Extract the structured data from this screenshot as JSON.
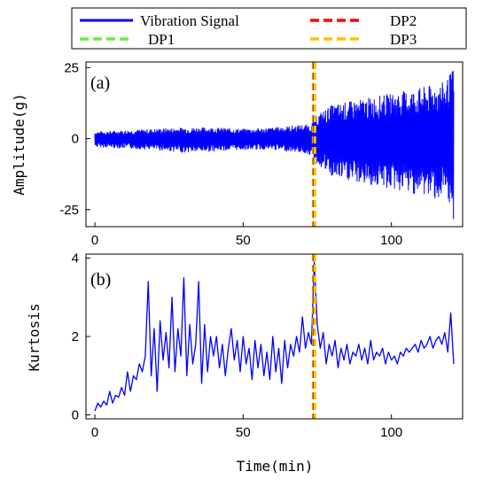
{
  "chart_data": [
    {
      "id": "a",
      "type": "line",
      "panel_label": "(a)",
      "xlabel": "",
      "ylabel": "Amplitude(g)",
      "xlim": [
        -3,
        124
      ],
      "ylim": [
        -31,
        27
      ],
      "x_ticks": [
        0,
        50,
        100
      ],
      "y_ticks": [
        -25,
        0,
        25
      ],
      "series": [
        {
          "name": "Vibration Signal",
          "color": "#0000ff",
          "envelope": {
            "x": [
              0,
              10,
              20,
              30,
              40,
              50,
              60,
              70,
              73,
              74,
              80,
              90,
              100,
              110,
              118,
              121
            ],
            "upper": [
              2.5,
              3,
              3.5,
              4,
              4,
              3.5,
              4,
              5,
              5,
              8,
              12,
              14,
              16,
              18,
              20,
              25
            ],
            "lower": [
              -3,
              -3.5,
              -4,
              -5,
              -4.5,
              -4,
              -4,
              -5,
              -6,
              -8,
              -14,
              -16,
              -18,
              -20,
              -22,
              -29
            ]
          }
        }
      ],
      "vlines": [
        {
          "name": "DP1",
          "x": 73.6,
          "color": "#66ee44",
          "dash": true
        },
        {
          "name": "DP2",
          "x": 73.9,
          "color": "#ff0000",
          "dash": true
        },
        {
          "name": "DP3",
          "x": 74.2,
          "color": "#ffc000",
          "dash": true
        }
      ]
    },
    {
      "id": "b",
      "type": "line",
      "panel_label": "(b)",
      "xlabel": "Time(min)",
      "ylabel": "Kurtosis",
      "xlim": [
        -3,
        124
      ],
      "ylim": [
        -0.1,
        4.1
      ],
      "x_ticks": [
        0,
        50,
        100
      ],
      "y_ticks": [
        0,
        2,
        4
      ],
      "series": [
        {
          "name": "Kurtosis",
          "color": "#0000ff",
          "x": [
            0,
            1,
            2,
            3,
            4,
            5,
            6,
            7,
            8,
            9,
            10,
            11,
            12,
            13,
            14,
            15,
            16,
            17,
            18,
            19,
            20,
            21,
            22,
            23,
            24,
            25,
            26,
            27,
            28,
            29,
            30,
            31,
            32,
            33,
            34,
            35,
            36,
            37,
            38,
            39,
            40,
            41,
            42,
            43,
            44,
            45,
            46,
            47,
            48,
            49,
            50,
            51,
            52,
            53,
            54,
            55,
            56,
            57,
            58,
            59,
            60,
            61,
            62,
            63,
            64,
            65,
            66,
            67,
            68,
            69,
            70,
            71,
            72,
            73,
            74,
            75,
            76,
            77,
            78,
            79,
            80,
            81,
            82,
            83,
            84,
            85,
            86,
            87,
            88,
            89,
            90,
            91,
            92,
            93,
            94,
            95,
            96,
            97,
            98,
            99,
            100,
            101,
            102,
            103,
            104,
            105,
            106,
            107,
            108,
            109,
            110,
            111,
            112,
            113,
            114,
            115,
            116,
            117,
            118,
            119,
            120,
            121
          ],
          "values": [
            0.1,
            0.3,
            0.2,
            0.35,
            0.25,
            0.6,
            0.3,
            0.5,
            0.45,
            0.7,
            0.5,
            1.1,
            0.6,
            1.0,
            0.9,
            1.3,
            1.1,
            1.5,
            3.4,
            1.0,
            2.2,
            0.6,
            2.4,
            1.4,
            2.1,
            1.2,
            3.0,
            1.1,
            2.2,
            1.5,
            3.5,
            1.0,
            2.3,
            1.3,
            1.8,
            3.4,
            0.8,
            2.3,
            1.1,
            2.0,
            1.5,
            2.0,
            1.2,
            1.8,
            1.0,
            1.7,
            2.2,
            1.4,
            1.9,
            1.1,
            2.0,
            1.3,
            1.7,
            0.9,
            1.9,
            1.2,
            1.8,
            1.0,
            1.6,
            0.9,
            2.0,
            1.1,
            1.7,
            0.8,
            1.9,
            1.2,
            1.8,
            1.5,
            2.0,
            1.6,
            2.5,
            1.7,
            2.1,
            1.8,
            3.9,
            2.3,
            1.7,
            2.1,
            1.3,
            1.8,
            1.5,
            1.9,
            1.2,
            1.7,
            1.4,
            1.8,
            1.3,
            1.6,
            1.5,
            1.8,
            1.4,
            1.7,
            1.3,
            1.9,
            1.4,
            1.6,
            1.5,
            1.7,
            1.3,
            1.6,
            1.4,
            1.5,
            1.3,
            1.6,
            1.5,
            1.7,
            1.6,
            1.7,
            1.8,
            1.6,
            1.9,
            1.7,
            1.8,
            2.0,
            1.7,
            1.9,
            2.0,
            1.8,
            2.1,
            1.6,
            2.6,
            1.3
          ]
        }
      ],
      "vlines": [
        {
          "name": "DP1",
          "x": 73.6,
          "color": "#66ee44",
          "dash": true
        },
        {
          "name": "DP2",
          "x": 73.9,
          "color": "#ff0000",
          "dash": true
        },
        {
          "name": "DP3",
          "x": 74.2,
          "color": "#ffc000",
          "dash": true
        }
      ]
    }
  ],
  "legend": {
    "placement": "top",
    "items": [
      {
        "label": "Vibration Signal",
        "color": "#0000ff",
        "style": "solid"
      },
      {
        "label": "DP2",
        "color": "#ff0000",
        "style": "dashed"
      },
      {
        "label": "DP1",
        "color": "#66ee44",
        "style": "dashed"
      },
      {
        "label": "DP3",
        "color": "#ffc000",
        "style": "dashed"
      }
    ]
  }
}
